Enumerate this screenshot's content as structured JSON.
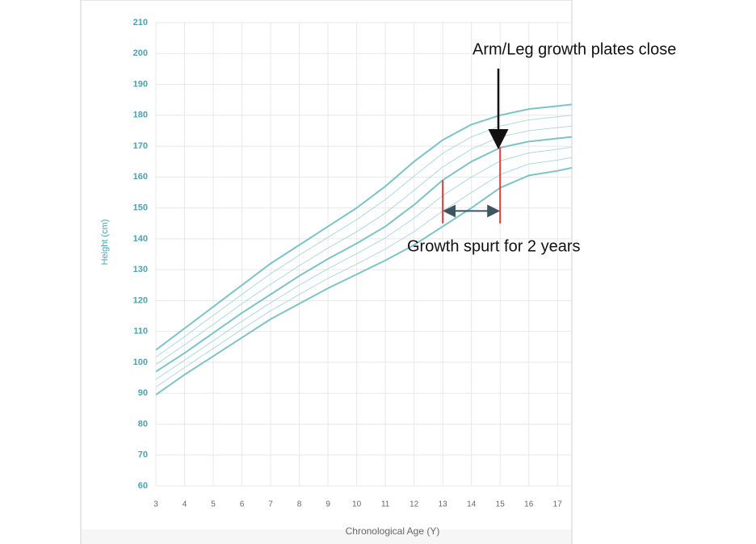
{
  "chart_data": {
    "type": "line",
    "xlabel": "Chronological Age (Y)",
    "ylabel": "Height (cm)",
    "x": [
      3,
      4,
      5,
      6,
      7,
      8,
      9,
      10,
      11,
      12,
      13,
      14,
      15,
      16,
      17,
      17.5
    ],
    "xlim": [
      3,
      17.5
    ],
    "ylim": [
      60,
      210
    ],
    "xticks": [
      3,
      4,
      5,
      6,
      7,
      8,
      9,
      10,
      11,
      12,
      13,
      14,
      15,
      16,
      17
    ],
    "yticks": [
      60,
      70,
      80,
      90,
      100,
      110,
      120,
      130,
      140,
      150,
      160,
      170,
      180,
      190,
      200,
      210
    ],
    "grid": true,
    "series": [
      {
        "color": "#7cc3c8",
        "line_width": 2,
        "values": [
          104,
          111,
          118,
          125,
          132,
          138,
          144,
          150,
          157,
          165,
          172,
          177,
          180,
          182,
          183,
          183.5
        ]
      },
      {
        "color": "#a6d6d9",
        "line_width": 0.9,
        "values": [
          101.7,
          108.3,
          115.2,
          122,
          128.7,
          134.7,
          140.5,
          146.2,
          152.7,
          160.3,
          167.7,
          173,
          176.5,
          178.5,
          179.5,
          180
        ]
      },
      {
        "color": "#a6d6d9",
        "line_width": 0.9,
        "values": [
          99.3,
          105.7,
          112.3,
          119,
          125.3,
          131.3,
          137,
          142.3,
          148.3,
          155.7,
          163.3,
          169,
          173,
          175,
          176,
          176.5
        ]
      },
      {
        "color": "#7cc3c8",
        "line_width": 2,
        "values": [
          97,
          103,
          109.5,
          116,
          122,
          128,
          133.5,
          138.5,
          144,
          151,
          159,
          165,
          169.5,
          171.5,
          172.5,
          173
        ]
      },
      {
        "color": "#a6d6d9",
        "line_width": 0.9,
        "values": [
          94.5,
          100.7,
          107,
          113.3,
          119.3,
          125,
          130.3,
          135.2,
          140.3,
          146.7,
          154,
          160,
          165.2,
          167.8,
          169,
          169.7
        ]
      },
      {
        "color": "#a6d6d9",
        "line_width": 0.9,
        "values": [
          92,
          98.3,
          104.5,
          110.7,
          116.7,
          122,
          127.2,
          131.8,
          136.7,
          142.3,
          149,
          155,
          160.8,
          164.2,
          165.5,
          166.3
        ]
      },
      {
        "color": "#7cc3c8",
        "line_width": 2,
        "values": [
          89.5,
          96,
          102,
          108,
          114,
          119,
          124,
          128.5,
          133,
          138,
          144,
          150,
          156.5,
          160.5,
          162,
          163
        ]
      }
    ],
    "reference_lines": [
      {
        "x": 13,
        "y_from": 145,
        "y_to": 159,
        "color": "#e53935"
      },
      {
        "x": 15,
        "y_from": 145,
        "y_to": 169.7,
        "color": "#e53935"
      }
    ],
    "span_arrow": {
      "x_from": 13,
      "x_to": 15,
      "y": 149,
      "color": "#3d5560"
    },
    "annotations": [
      "Arm/Leg growth plates close",
      "Growth spurt for 2 years"
    ]
  }
}
